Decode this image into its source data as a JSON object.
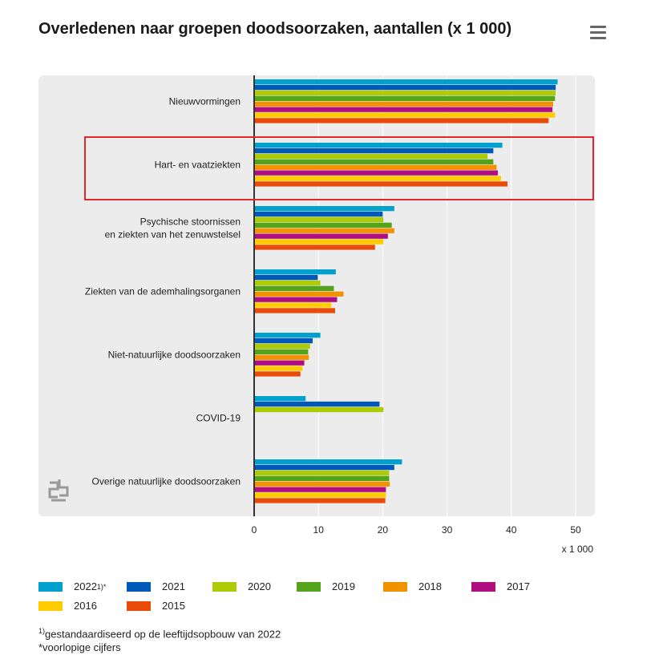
{
  "title": "Overledenen naar groepen doodsoorzaken, aantallen (x 1 000)",
  "menu_icon": "hamburger-menu-icon",
  "logo_icon": "cbs-logo-icon",
  "colors": {
    "panel_bg": "#ececec",
    "highlight_box": "#e3262a",
    "axis": "#333333",
    "gridline": "#ffffff"
  },
  "chart_data": {
    "type": "bar",
    "orientation": "horizontal",
    "title": "Overledenen naar groepen doodsoorzaken, aantallen (x 1 000)",
    "xlabel": "x 1 000",
    "ylabel": "",
    "xlim": [
      0,
      52
    ],
    "x_ticks": [
      0,
      10,
      20,
      30,
      40,
      50
    ],
    "grid": true,
    "legend_position": "bottom",
    "highlighted_category": "Hart- en vaatziekten",
    "categories": [
      "Nieuwvormingen",
      "Hart- en vaatziekten",
      "Psychische stoornissen\nen ziekten van het zenuwstelsel",
      "Ziekten van de ademhalingsorganen",
      "Niet-natuurlijke doodsoorzaken",
      "COVID-19",
      "Overige natuurlijke doodsoorzaken"
    ],
    "series": [
      {
        "name": "2022⁾ᵖ",
        "legend_label": "2022",
        "legend_sup": "1)*",
        "color": "#00a1cd",
        "values": [
          47.2,
          38.6,
          21.8,
          12.7,
          10.3,
          8.0,
          23.0
        ]
      },
      {
        "name": "2021",
        "legend_label": "2021",
        "legend_sup": "",
        "color": "#0058b8",
        "values": [
          46.9,
          37.2,
          20.0,
          9.9,
          9.1,
          19.5,
          21.8
        ]
      },
      {
        "name": "2020",
        "legend_label": "2020",
        "legend_sup": "",
        "color": "#afcb05",
        "values": [
          46.9,
          36.3,
          20.1,
          10.3,
          8.7,
          20.1,
          21.0
        ]
      },
      {
        "name": "2019",
        "legend_label": "2019",
        "legend_sup": "",
        "color": "#53a31d",
        "values": [
          46.8,
          37.2,
          21.4,
          12.4,
          8.4,
          null,
          21.0
        ]
      },
      {
        "name": "2018",
        "legend_label": "2018",
        "legend_sup": "",
        "color": "#f39200",
        "values": [
          46.5,
          37.7,
          21.8,
          13.9,
          8.5,
          null,
          21.1
        ]
      },
      {
        "name": "2017",
        "legend_label": "2017",
        "legend_sup": "",
        "color": "#af0e80",
        "values": [
          46.4,
          37.9,
          20.8,
          12.9,
          7.8,
          null,
          20.5
        ]
      },
      {
        "name": "2016",
        "legend_label": "2016",
        "legend_sup": "",
        "color": "#ffcc00",
        "values": [
          46.8,
          38.4,
          20.1,
          12.0,
          7.5,
          null,
          20.5
        ]
      },
      {
        "name": "2015",
        "legend_label": "2015",
        "legend_sup": "",
        "color": "#e94c0a",
        "values": [
          45.8,
          39.4,
          18.8,
          12.6,
          7.2,
          null,
          20.4
        ]
      }
    ]
  },
  "footnotes": {
    "note1_marker": "1)",
    "note1_text": "gestandaardiseerd op de leeftijdsopbouw van 2022",
    "note2_text": "*voorlopige cijfers"
  }
}
